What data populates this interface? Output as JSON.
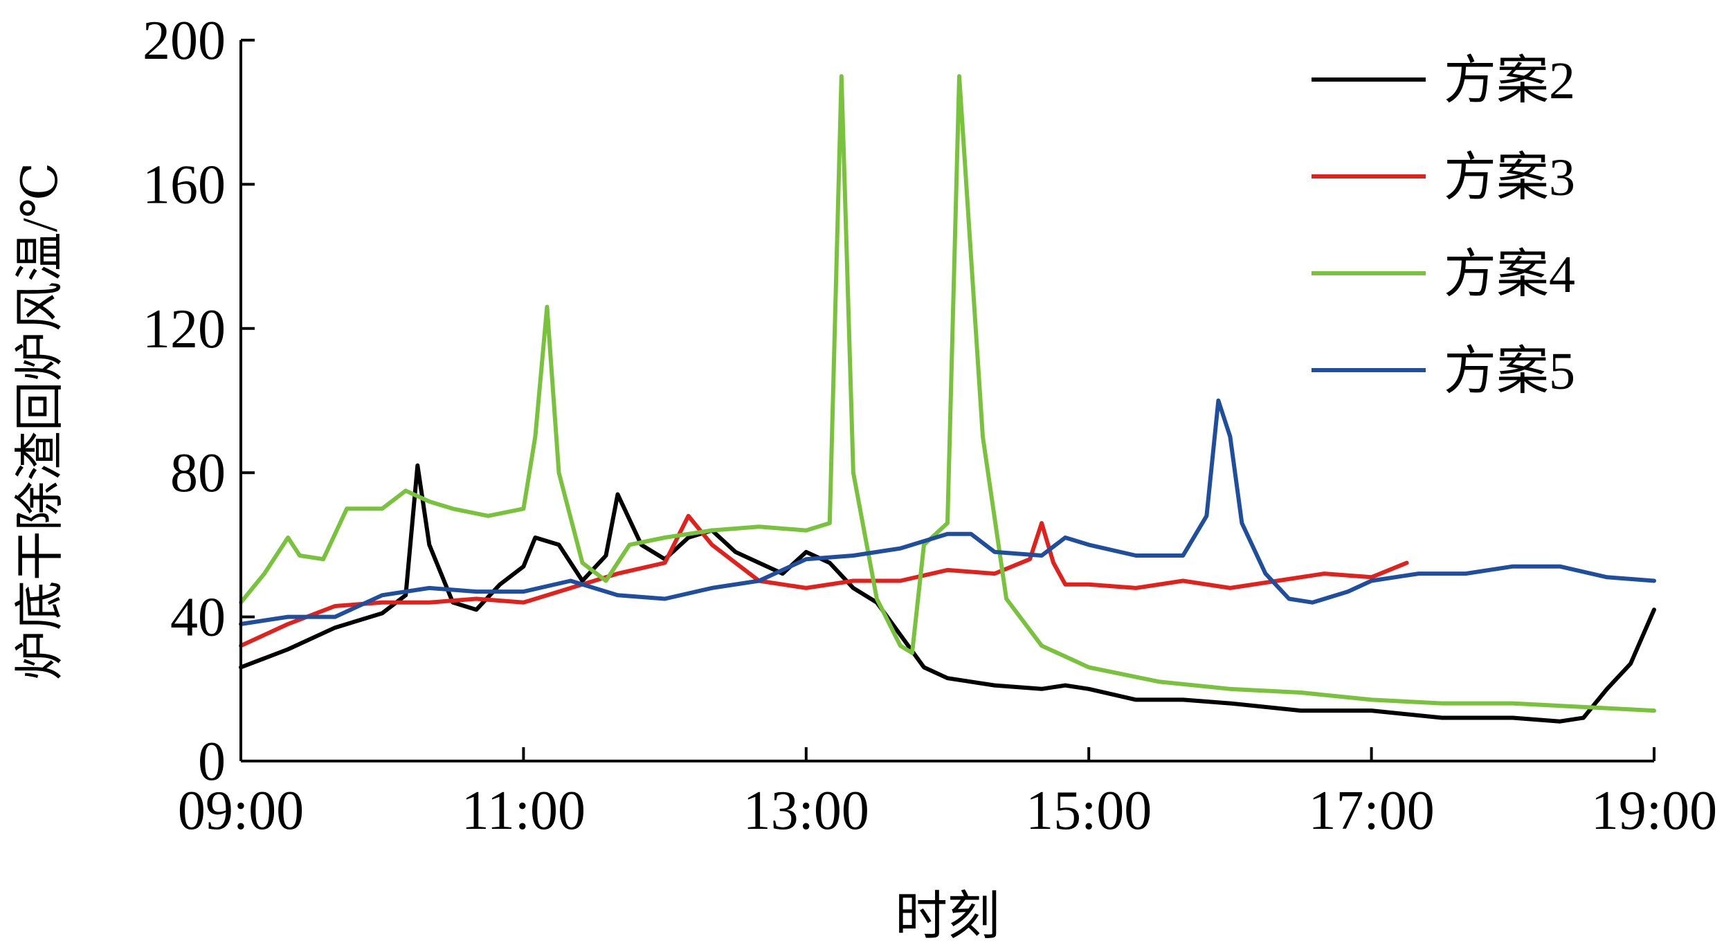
{
  "chart_data": {
    "type": "line",
    "xlabel": "时刻",
    "ylabel": "炉底干除渣回炉风温/℃",
    "x_ticks": [
      "09:00",
      "11:00",
      "13:00",
      "15:00",
      "17:00",
      "19:00"
    ],
    "xlim_hours": [
      9,
      19
    ],
    "y_ticks": [
      0,
      40,
      80,
      120,
      160,
      200
    ],
    "ylim": [
      0,
      200
    ],
    "grid": false,
    "legend_position": "top-right",
    "series": [
      {
        "name": "方案2",
        "color": "#000000",
        "points": [
          [
            "09:00",
            26
          ],
          [
            "09:20",
            31
          ],
          [
            "09:40",
            37
          ],
          [
            "10:00",
            41
          ],
          [
            "10:10",
            46
          ],
          [
            "10:15",
            82
          ],
          [
            "10:20",
            60
          ],
          [
            "10:30",
            44
          ],
          [
            "10:40",
            42
          ],
          [
            "10:50",
            49
          ],
          [
            "11:00",
            54
          ],
          [
            "11:05",
            62
          ],
          [
            "11:15",
            60
          ],
          [
            "11:25",
            50
          ],
          [
            "11:35",
            57
          ],
          [
            "11:40",
            74
          ],
          [
            "11:50",
            60
          ],
          [
            "12:00",
            56
          ],
          [
            "12:10",
            62
          ],
          [
            "12:20",
            64
          ],
          [
            "12:30",
            58
          ],
          [
            "12:40",
            55
          ],
          [
            "12:50",
            52
          ],
          [
            "13:00",
            58
          ],
          [
            "13:10",
            55
          ],
          [
            "13:20",
            48
          ],
          [
            "13:30",
            44
          ],
          [
            "13:40",
            35
          ],
          [
            "13:50",
            26
          ],
          [
            "14:00",
            23
          ],
          [
            "14:20",
            21
          ],
          [
            "14:40",
            20
          ],
          [
            "14:50",
            21
          ],
          [
            "15:00",
            20
          ],
          [
            "15:20",
            17
          ],
          [
            "15:40",
            17
          ],
          [
            "16:00",
            16
          ],
          [
            "16:30",
            14
          ],
          [
            "17:00",
            14
          ],
          [
            "17:30",
            12
          ],
          [
            "18:00",
            12
          ],
          [
            "18:20",
            11
          ],
          [
            "18:30",
            12
          ],
          [
            "18:40",
            20
          ],
          [
            "18:50",
            27
          ],
          [
            "19:00",
            42
          ]
        ]
      },
      {
        "name": "方案3",
        "color": "#e3211c",
        "points": [
          [
            "09:00",
            32
          ],
          [
            "09:20",
            38
          ],
          [
            "09:40",
            43
          ],
          [
            "10:00",
            44
          ],
          [
            "10:20",
            44
          ],
          [
            "10:40",
            45
          ],
          [
            "11:00",
            44
          ],
          [
            "11:20",
            48
          ],
          [
            "11:40",
            52
          ],
          [
            "12:00",
            55
          ],
          [
            "12:10",
            68
          ],
          [
            "12:20",
            60
          ],
          [
            "12:30",
            55
          ],
          [
            "12:40",
            50
          ],
          [
            "13:00",
            48
          ],
          [
            "13:20",
            50
          ],
          [
            "13:40",
            50
          ],
          [
            "14:00",
            53
          ],
          [
            "14:20",
            52
          ],
          [
            "14:35",
            56
          ],
          [
            "14:40",
            66
          ],
          [
            "14:45",
            55
          ],
          [
            "14:50",
            49
          ],
          [
            "15:00",
            49
          ],
          [
            "15:20",
            48
          ],
          [
            "15:40",
            50
          ],
          [
            "16:00",
            48
          ],
          [
            "16:20",
            50
          ],
          [
            "16:40",
            52
          ],
          [
            "17:00",
            51
          ],
          [
            "17:15",
            55
          ]
        ]
      },
      {
        "name": "方案4",
        "color": "#78c23c",
        "points": [
          [
            "09:00",
            44
          ],
          [
            "09:10",
            52
          ],
          [
            "09:20",
            62
          ],
          [
            "09:25",
            57
          ],
          [
            "09:35",
            56
          ],
          [
            "09:45",
            70
          ],
          [
            "10:00",
            70
          ],
          [
            "10:10",
            75
          ],
          [
            "10:20",
            72
          ],
          [
            "10:30",
            70
          ],
          [
            "10:45",
            68
          ],
          [
            "11:00",
            70
          ],
          [
            "11:05",
            90
          ],
          [
            "11:10",
            126
          ],
          [
            "11:15",
            80
          ],
          [
            "11:25",
            55
          ],
          [
            "11:35",
            50
          ],
          [
            "11:45",
            60
          ],
          [
            "12:00",
            62
          ],
          [
            "12:20",
            64
          ],
          [
            "12:40",
            65
          ],
          [
            "13:00",
            64
          ],
          [
            "13:10",
            66
          ],
          [
            "13:15",
            190
          ],
          [
            "13:20",
            80
          ],
          [
            "13:30",
            45
          ],
          [
            "13:40",
            32
          ],
          [
            "13:45",
            30
          ],
          [
            "13:50",
            60
          ],
          [
            "14:00",
            66
          ],
          [
            "14:05",
            190
          ],
          [
            "14:15",
            90
          ],
          [
            "14:25",
            45
          ],
          [
            "14:40",
            32
          ],
          [
            "15:00",
            26
          ],
          [
            "15:30",
            22
          ],
          [
            "16:00",
            20
          ],
          [
            "16:30",
            19
          ],
          [
            "17:00",
            17
          ],
          [
            "17:30",
            16
          ],
          [
            "18:00",
            16
          ],
          [
            "18:30",
            15
          ],
          [
            "19:00",
            14
          ]
        ]
      },
      {
        "name": "方案5",
        "color": "#1f4e9e",
        "points": [
          [
            "09:00",
            38
          ],
          [
            "09:20",
            40
          ],
          [
            "09:40",
            40
          ],
          [
            "10:00",
            46
          ],
          [
            "10:20",
            48
          ],
          [
            "10:40",
            47
          ],
          [
            "11:00",
            47
          ],
          [
            "11:20",
            50
          ],
          [
            "11:40",
            46
          ],
          [
            "12:00",
            45
          ],
          [
            "12:20",
            48
          ],
          [
            "12:40",
            50
          ],
          [
            "13:00",
            56
          ],
          [
            "13:20",
            57
          ],
          [
            "13:40",
            59
          ],
          [
            "14:00",
            63
          ],
          [
            "14:10",
            63
          ],
          [
            "14:20",
            58
          ],
          [
            "14:40",
            57
          ],
          [
            "14:50",
            62
          ],
          [
            "15:00",
            60
          ],
          [
            "15:20",
            57
          ],
          [
            "15:40",
            57
          ],
          [
            "15:50",
            68
          ],
          [
            "15:55",
            100
          ],
          [
            "16:00",
            90
          ],
          [
            "16:05",
            66
          ],
          [
            "16:15",
            52
          ],
          [
            "16:25",
            45
          ],
          [
            "16:35",
            44
          ],
          [
            "16:50",
            47
          ],
          [
            "17:00",
            50
          ],
          [
            "17:20",
            52
          ],
          [
            "17:40",
            52
          ],
          [
            "18:00",
            54
          ],
          [
            "18:20",
            54
          ],
          [
            "18:40",
            51
          ],
          [
            "19:00",
            50
          ]
        ]
      }
    ]
  }
}
